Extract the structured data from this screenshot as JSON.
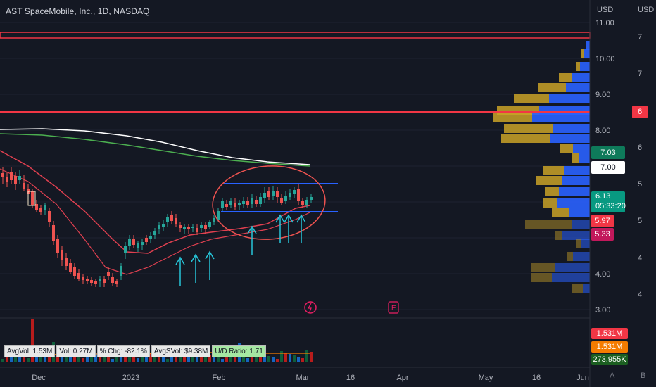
{
  "header": {
    "title": "AST SpaceMobile, Inc., 1D, NASDAQ",
    "currency_left": "USD",
    "currency_right": "USD"
  },
  "price_axis_left": [
    "11.00",
    "10.00",
    "9.00",
    "8.00",
    "7.03",
    "7.00",
    "6.13",
    "5.97",
    "5.33",
    "4.00",
    "3.00"
  ],
  "price_axis_left_ticks": [
    {
      "label": "11.00",
      "price": 11.0
    },
    {
      "label": "10.00",
      "price": 10.0
    },
    {
      "label": "9.00",
      "price": 9.0
    },
    {
      "label": "8.00",
      "price": 8.0
    },
    {
      "label": "4.00",
      "price": 4.0
    },
    {
      "label": "3.00",
      "price": 3.0
    }
  ],
  "price_axis_right_ticks": [
    "7",
    "7",
    "6",
    "6",
    "5",
    "5",
    "4",
    "4"
  ],
  "badges": {
    "red_line_right": "6",
    "green_top": "7.03",
    "white_level": "7.00",
    "last_price": "6.13",
    "countdown": "05:33:20",
    "red_a": "5.97",
    "red_b": "5.33"
  },
  "volume_badges": {
    "red": "1.531M",
    "orange": "1.531M",
    "green": "273.955K"
  },
  "stats": [
    {
      "label": "AvgVol: 1.53M"
    },
    {
      "label": "Vol: 0.27M"
    },
    {
      "label": "% Chg: -82.1%"
    },
    {
      "label": "AvgSVol: $9.38M"
    },
    {
      "label": "U/D Ratio: 1.71"
    }
  ],
  "time_axis": [
    "Dec",
    "2023",
    "Feb",
    "Mar",
    "16",
    "Apr",
    "May",
    "16",
    "Jun"
  ],
  "bottom_buttons": [
    "A",
    "B"
  ],
  "event_markers": [
    "earnings-lightning",
    "E"
  ],
  "colors": {
    "background": "#141823",
    "up": "#26a69a",
    "down": "#ef5350",
    "blue_channel": "#2962ff",
    "red_level": "#f23645",
    "ma_white": "#ffffff",
    "ma_green": "#4caf50",
    "ma_red": "#e04050",
    "arrow": "#26c6da",
    "vp_up": "#2962ff",
    "vp_down": "#c9a227"
  }
}
